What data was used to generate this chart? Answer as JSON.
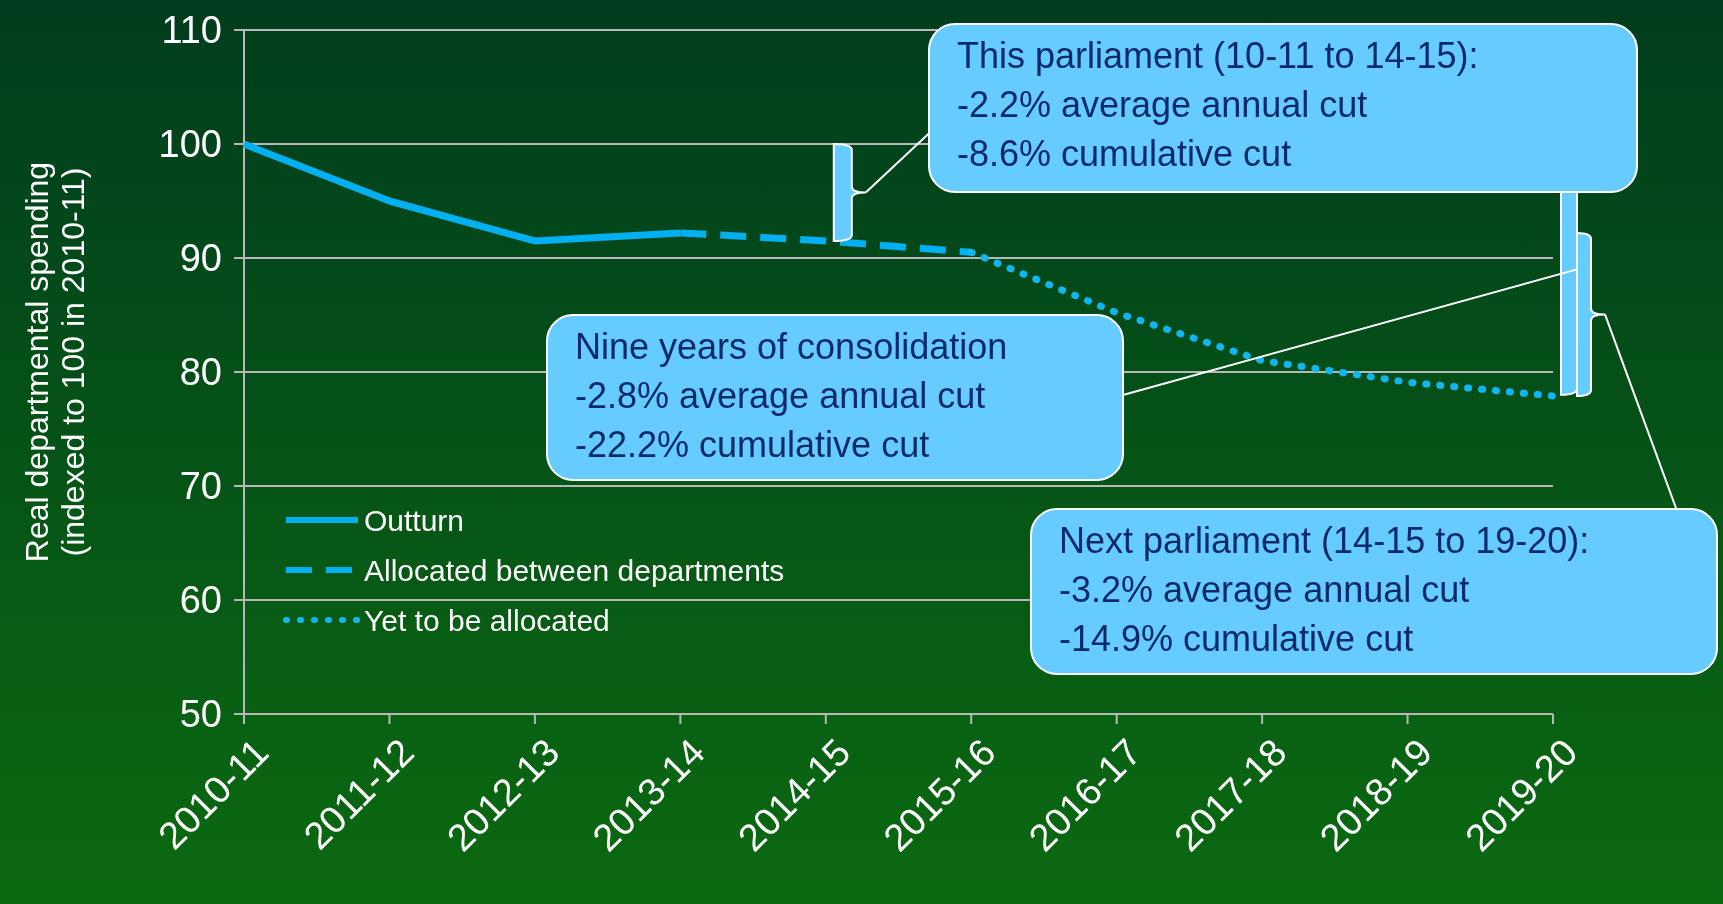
{
  "chart_data": {
    "type": "line",
    "ylabel": "Real departmental spending\n(indexed to 100 in 2010-11)",
    "categories": [
      "2010-11",
      "2011-12",
      "2012-13",
      "2013-14",
      "2014-15",
      "2015-16",
      "2016-17",
      "2017-18",
      "2018-19",
      "2019-20"
    ],
    "series": [
      {
        "name": "Outturn",
        "color": "#00b0f0",
        "line_style": "solid",
        "values": [
          100,
          95,
          91.5,
          92.2,
          null,
          null,
          null,
          null,
          null,
          null
        ]
      },
      {
        "name": "Allocated between departments",
        "color": "#00b0f0",
        "line_style": "dashed",
        "values": [
          null,
          null,
          null,
          92.2,
          91.5,
          90.5,
          null,
          null,
          null,
          null
        ]
      },
      {
        "name": "Yet to be allocated",
        "color": "#10b6f2",
        "line_style": "dotted",
        "values": [
          null,
          null,
          null,
          null,
          null,
          90.5,
          85.2,
          81,
          79.1,
          77.9
        ]
      }
    ],
    "ylim": [
      50,
      110
    ],
    "yticks": [
      50,
      60,
      70,
      80,
      90,
      100,
      110
    ],
    "grid": "y",
    "legend": "bottom left",
    "marker": "none",
    "annotations": [
      "This parliament (10-11 to 14-15):\n-2.2% average annual cut\n-8.6% cumulative cut",
      "Nine years of consolidation\n-2.8% average annual cut\n-22.2% cumulative cut",
      "Next parliament (14-15 to 19-20):\n-3.2% average annual cut\n-14.9% cumulative cut"
    ]
  }
}
